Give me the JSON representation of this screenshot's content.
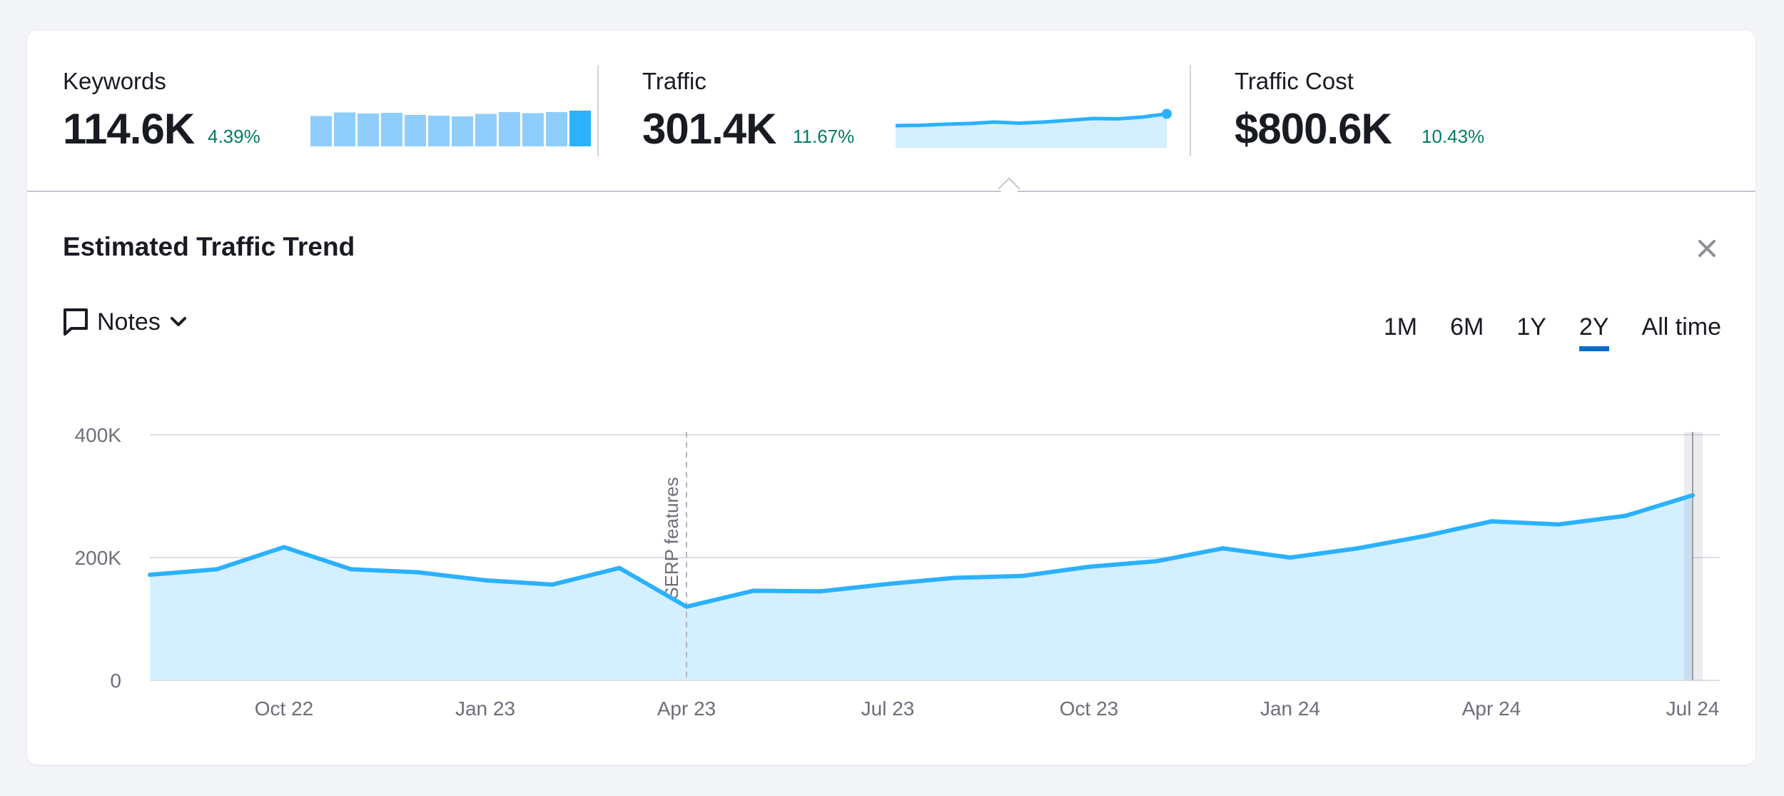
{
  "metrics": [
    {
      "label": "Keywords",
      "value": "114.6K",
      "change": "4.39%",
      "spark_type": "bar",
      "spark": [
        0.85,
        0.95,
        0.92,
        0.94,
        0.88,
        0.86,
        0.84,
        0.91,
        0.96,
        0.93,
        0.96,
        1.0
      ]
    },
    {
      "label": "Traffic",
      "value": "301.4K",
      "change": "11.67%",
      "spark_type": "area",
      "spark": [
        0.62,
        0.63,
        0.66,
        0.68,
        0.72,
        0.69,
        0.72,
        0.77,
        0.82,
        0.81,
        0.86,
        0.95
      ]
    },
    {
      "label": "Traffic Cost",
      "value": "$800.6K",
      "change": "10.43%"
    }
  ],
  "panel": {
    "title": "Estimated Traffic Trend",
    "close_icon": "close-icon",
    "notes_label": "Notes",
    "notes_icon": "comment-icon",
    "time_ranges": [
      "1M",
      "6M",
      "1Y",
      "2Y",
      "All time"
    ],
    "active_range": "2Y"
  },
  "colors": {
    "line": "#2bb1ff",
    "fill": "#d4efff",
    "positive": "#007c65",
    "accent": "#006dca",
    "bar": "#8fcdfd",
    "bar_last": "#2bb1ff"
  },
  "chart_data": {
    "type": "area",
    "x": [
      "Aug 22",
      "Sep 22",
      "Oct 22",
      "Nov 22",
      "Dec 22",
      "Jan 23",
      "Feb 23",
      "Mar 23",
      "Apr 23",
      "May 23",
      "Jun 23",
      "Jul 23",
      "Aug 23",
      "Sep 23",
      "Oct 23",
      "Nov 23",
      "Dec 23",
      "Jan 24",
      "Feb 24",
      "Mar 24",
      "Apr 24",
      "May 24",
      "Jun 24",
      "Jul 24"
    ],
    "values": [
      172000,
      181000,
      217000,
      181000,
      176000,
      163000,
      156000,
      183000,
      120000,
      146000,
      145000,
      157000,
      167000,
      170000,
      185000,
      194000,
      215000,
      200000,
      215000,
      235000,
      259000,
      254000,
      268000,
      301400
    ],
    "x_tick_labels": [
      "Oct 22",
      "Jan 23",
      "Apr 23",
      "Jul 23",
      "Oct 23",
      "Jan 24",
      "Apr 24",
      "Jul 24"
    ],
    "x_tick_positions": [
      "Oct 22",
      "Jan 23",
      "Apr 23",
      "Jul 23",
      "Oct 23",
      "Jan 24",
      "Apr 24",
      "Jul 24"
    ],
    "y_tick_labels": [
      "0",
      "200K",
      "400K"
    ],
    "y_ticks": [
      0,
      200000,
      400000
    ],
    "ylim": [
      0,
      450000
    ],
    "grid": true,
    "annotations": [
      {
        "x": "Apr 23",
        "label": "SERP features"
      }
    ],
    "highlight": "Jul 24"
  }
}
